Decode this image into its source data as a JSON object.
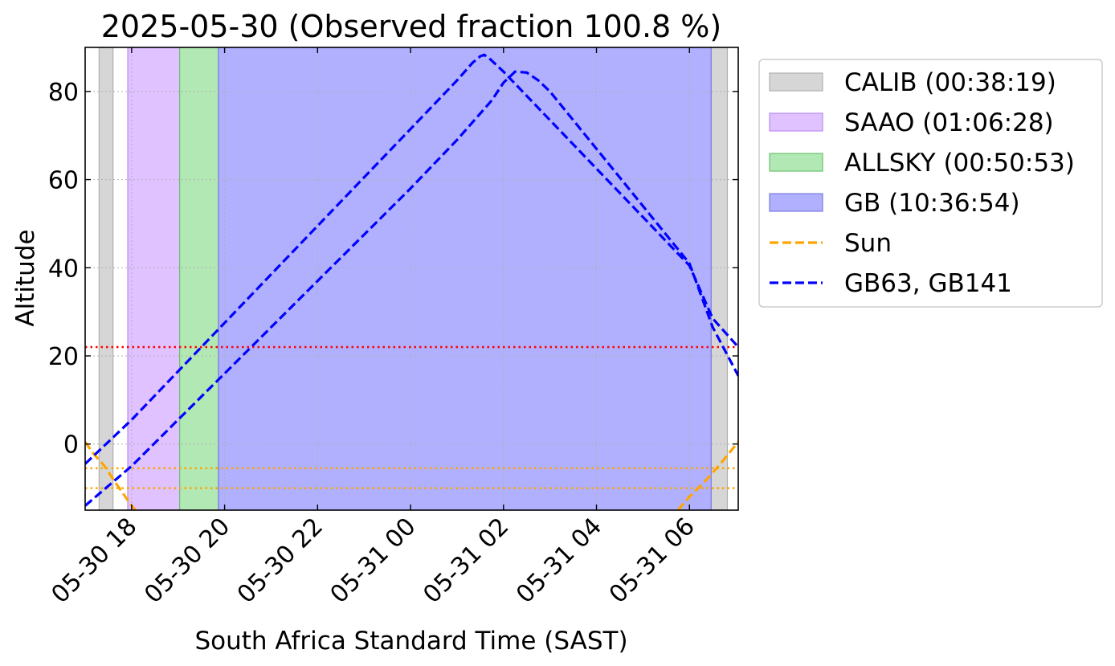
{
  "chart_data": {
    "type": "line",
    "title": "2025-05-30 (Observed fraction 100.8 %)",
    "xlabel": "South Africa Standard Time (SAST)",
    "ylabel": "Altitude",
    "xlim": [
      "2025-05-30 17:00",
      "2025-05-31 07:03"
    ],
    "ylim": [
      -15,
      90
    ],
    "x_ticks": [
      {
        "value": "2025-05-30 18:00",
        "label": "05-30 18"
      },
      {
        "value": "2025-05-30 20:00",
        "label": "05-30 20"
      },
      {
        "value": "2025-05-30 22:00",
        "label": "05-30 22"
      },
      {
        "value": "2025-05-31 00:00",
        "label": "05-31 00"
      },
      {
        "value": "2025-05-31 02:00",
        "label": "05-31 02"
      },
      {
        "value": "2025-05-31 04:00",
        "label": "05-31 04"
      },
      {
        "value": "2025-05-31 06:00",
        "label": "05-31 06"
      }
    ],
    "y_ticks": [
      0,
      20,
      40,
      60,
      80
    ],
    "grid": true,
    "legend_position": "outside-right-top",
    "spans": [
      {
        "name": "CALIB (00:38:19)",
        "color": "#d6d6d6",
        "edge": "#b0b0b0",
        "ranges": [
          [
            "2025-05-30 17:18",
            "2025-05-30 17:36"
          ],
          [
            "2025-05-31 06:28",
            "2025-05-31 06:49"
          ]
        ]
      },
      {
        "name": "SAAO (01:06:28)",
        "color": "#dfc2ff",
        "edge": "#b88cf0",
        "ranges": [
          [
            "2025-05-30 17:55",
            "2025-05-30 19:02"
          ]
        ]
      },
      {
        "name": "ALLSKY (00:50:53)",
        "color": "#b2e8b4",
        "edge": "#6cc06e",
        "ranges": [
          [
            "2025-05-30 19:02",
            "2025-05-30 19:52"
          ]
        ]
      },
      {
        "name": "GB (10:36:54)",
        "color": "#b0b0ff",
        "edge": "#7b7bdf",
        "ranges": [
          [
            "2025-05-30 19:52",
            "2025-05-31 06:28"
          ]
        ]
      }
    ],
    "series": [
      {
        "name": "Sun",
        "color": "#ffa500",
        "style": "dashed",
        "segments": [
          [
            [
              "2025-05-30 17:00",
              0.5
            ],
            [
              "2025-05-30 17:10",
              -2
            ],
            [
              "2025-05-30 17:25",
              -5
            ],
            [
              "2025-05-30 17:40",
              -9
            ],
            [
              "2025-05-30 18:00",
              -14
            ],
            [
              "2025-05-30 18:05",
              -15
            ]
          ],
          [
            [
              "2025-05-31 05:45",
              -15
            ],
            [
              "2025-05-31 06:00",
              -12
            ],
            [
              "2025-05-31 06:20",
              -8.5
            ],
            [
              "2025-05-31 06:40",
              -4.5
            ],
            [
              "2025-05-31 07:03",
              0.5
            ]
          ]
        ]
      },
      {
        "name": "GB63, GB141",
        "color": "#0000ff",
        "style": "dashed",
        "segments": [
          [
            [
              "2025-05-30 17:00",
              -4.5
            ],
            [
              "2025-05-30 18:00",
              5.5
            ],
            [
              "2025-05-30 19:00",
              16.5
            ],
            [
              "2025-05-30 20:00",
              27.5
            ],
            [
              "2025-05-30 21:00",
              38.5
            ],
            [
              "2025-05-30 22:00",
              49.5
            ],
            [
              "2025-05-30 23:00",
              60.5
            ],
            [
              "2025-05-31 00:00",
              71.5
            ],
            [
              "2025-05-31 01:00",
              82.5
            ],
            [
              "2025-05-31 01:20",
              86.5
            ],
            [
              "2025-05-31 01:30",
              88
            ],
            [
              "2025-05-31 01:35",
              88.3
            ],
            [
              "2025-05-31 01:40",
              87.8
            ],
            [
              "2025-05-31 02:00",
              84.5
            ],
            [
              "2025-05-31 03:00",
              73.5
            ],
            [
              "2025-05-31 04:00",
              62.5
            ],
            [
              "2025-05-31 05:00",
              51.5
            ],
            [
              "2025-05-31 06:00",
              40.5
            ],
            [
              "2025-05-31 06:30",
              28.5
            ],
            [
              "2025-05-31 07:03",
              22
            ]
          ],
          [
            [
              "2025-05-30 17:00",
              -14
            ],
            [
              "2025-05-30 18:00",
              -5
            ],
            [
              "2025-05-30 19:00",
              5.5
            ],
            [
              "2025-05-30 20:00",
              16
            ],
            [
              "2025-05-30 21:00",
              26.5
            ],
            [
              "2025-05-30 22:00",
              37
            ],
            [
              "2025-05-30 23:00",
              47.5
            ],
            [
              "2025-05-31 00:00",
              58
            ],
            [
              "2025-05-31 01:00",
              69
            ],
            [
              "2025-05-31 01:45",
              78
            ],
            [
              "2025-05-31 02:00",
              82
            ],
            [
              "2025-05-31 02:15",
              84.5
            ],
            [
              "2025-05-31 02:30",
              84.3
            ],
            [
              "2025-05-31 02:45",
              82.5
            ],
            [
              "2025-05-31 03:00",
              80
            ],
            [
              "2025-05-31 04:00",
              67
            ],
            [
              "2025-05-31 05:00",
              54
            ],
            [
              "2025-05-31 06:00",
              41
            ],
            [
              "2025-05-31 06:30",
              26.5
            ],
            [
              "2025-05-31 07:03",
              15.5
            ]
          ]
        ]
      }
    ],
    "hlines": [
      {
        "y": 22,
        "color": "#ff0000",
        "style": "dotted"
      },
      {
        "y": -5.5,
        "color": "#ffa500",
        "style": "dotted"
      },
      {
        "y": -10,
        "color": "#ffa500",
        "style": "dotted"
      }
    ],
    "legend": [
      {
        "label": "CALIB (00:38:19)",
        "kind": "patch",
        "color": "#d6d6d6",
        "edge": "#b0b0b0"
      },
      {
        "label": "SAAO (01:06:28)",
        "kind": "patch",
        "color": "#dfc2ff",
        "edge": "#b88cf0"
      },
      {
        "label": "ALLSKY (00:50:53)",
        "kind": "patch",
        "color": "#b2e8b4",
        "edge": "#6cc06e"
      },
      {
        "label": "GB (10:36:54)",
        "kind": "patch",
        "color": "#b0b0ff",
        "edge": "#7b7bdf"
      },
      {
        "label": "Sun",
        "kind": "line",
        "color": "#ffa500"
      },
      {
        "label": "GB63, GB141",
        "kind": "line",
        "color": "#0000ff"
      }
    ]
  }
}
